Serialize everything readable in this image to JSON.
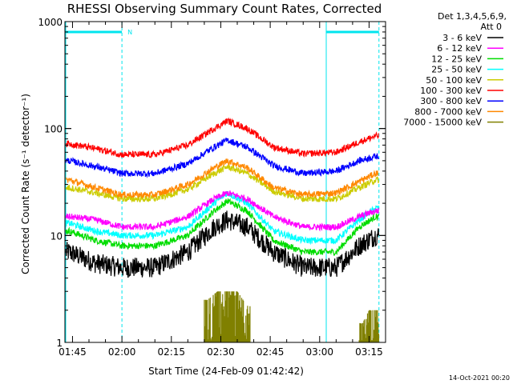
{
  "chart_data": {
    "type": "line",
    "title": "RHESSI Observing Summary Count Rates, Corrected",
    "xlabel": "Start Time (24-Feb-09 01:42:42)",
    "ylabel": "Corrected Count Rate (s⁻¹ detector⁻¹)",
    "yscale": "log",
    "ylim": [
      1,
      1000
    ],
    "ytick_labels": [
      "1",
      "10",
      "100",
      "1000"
    ],
    "xlim": [
      "01:42:42",
      "03:20:00"
    ],
    "xtick_labels": [
      "01:45",
      "02:00",
      "02:15",
      "02:30",
      "02:45",
      "03:00",
      "03:15"
    ],
    "legend_header": [
      "Det 1,3,4,5,6,9,",
      "Att 0"
    ],
    "legend_placement": "right",
    "series": [
      {
        "name": "3 - 6 keV",
        "color": "#000000",
        "x": [
          "01:44",
          "01:52",
          "02:00",
          "02:10",
          "02:20",
          "02:28",
          "02:32",
          "02:38",
          "02:46",
          "02:55",
          "03:05",
          "03:12",
          "03:17"
        ],
        "values": [
          7,
          5.5,
          5,
          5,
          7,
          12,
          14,
          12,
          7,
          5,
          5,
          8,
          10
        ]
      },
      {
        "name": "6 - 12 keV",
        "color": "#ff00ff",
        "x": [
          "01:44",
          "01:52",
          "02:00",
          "02:10",
          "02:20",
          "02:28",
          "02:32",
          "02:38",
          "02:46",
          "02:55",
          "03:05",
          "03:12",
          "03:17"
        ],
        "values": [
          15,
          14,
          12,
          12,
          15,
          22,
          25,
          22,
          15,
          12,
          12,
          15,
          17
        ]
      },
      {
        "name": "12 - 25 keV",
        "color": "#00dd00",
        "x": [
          "01:44",
          "01:52",
          "02:00",
          "02:10",
          "02:20",
          "02:28",
          "02:32",
          "02:38",
          "02:46",
          "02:55",
          "03:05",
          "03:12",
          "03:17"
        ],
        "values": [
          11,
          9,
          8,
          8,
          10,
          17,
          21,
          17,
          9,
          7,
          7,
          12,
          15
        ]
      },
      {
        "name": "25 - 50 keV",
        "color": "#00ffff",
        "x": [
          "01:44",
          "01:52",
          "02:00",
          "02:10",
          "02:20",
          "02:28",
          "02:32",
          "02:38",
          "02:46",
          "02:55",
          "03:05",
          "03:12",
          "03:17"
        ],
        "values": [
          13,
          11,
          10,
          10,
          12,
          20,
          25,
          20,
          11,
          9,
          9,
          14,
          18
        ]
      },
      {
        "name": "50 - 100 keV",
        "color": "#cccc00",
        "x": [
          "01:44",
          "01:52",
          "02:00",
          "02:10",
          "02:20",
          "02:28",
          "02:32",
          "02:38",
          "02:46",
          "02:55",
          "03:05",
          "03:12",
          "03:17"
        ],
        "values": [
          28,
          25,
          22,
          22,
          27,
          38,
          44,
          38,
          26,
          22,
          22,
          28,
          33
        ]
      },
      {
        "name": "100 - 300 keV",
        "color": "#ff0000",
        "x": [
          "01:44",
          "01:52",
          "02:00",
          "02:10",
          "02:20",
          "02:28",
          "02:32",
          "02:38",
          "02:46",
          "02:55",
          "03:05",
          "03:12",
          "03:17"
        ],
        "values": [
          72,
          65,
          57,
          57,
          70,
          100,
          118,
          100,
          67,
          58,
          60,
          75,
          85
        ]
      },
      {
        "name": "300 - 800 keV",
        "color": "#0000ff",
        "x": [
          "01:44",
          "01:52",
          "02:00",
          "02:10",
          "02:20",
          "02:28",
          "02:32",
          "02:38",
          "02:46",
          "02:55",
          "03:05",
          "03:12",
          "03:17"
        ],
        "values": [
          50,
          44,
          38,
          38,
          47,
          67,
          78,
          67,
          45,
          38,
          40,
          50,
          55
        ]
      },
      {
        "name": "800 - 7000 keV",
        "color": "#ff8800",
        "x": [
          "01:44",
          "01:52",
          "02:00",
          "02:10",
          "02:20",
          "02:28",
          "02:32",
          "02:38",
          "02:46",
          "02:55",
          "03:05",
          "03:12",
          "03:17"
        ],
        "values": [
          33,
          28,
          24,
          24,
          30,
          43,
          50,
          43,
          28,
          24,
          25,
          32,
          38
        ]
      },
      {
        "name": "7000 - 15000 keV",
        "color": "#808000",
        "x": [
          "02:26",
          "02:29",
          "02:32",
          "02:35",
          "02:38",
          "03:13",
          "03:15",
          "03:17"
        ],
        "values": [
          2.5,
          3,
          3,
          3,
          2.2,
          1.5,
          2,
          2
        ]
      }
    ],
    "annotations": [
      {
        "text": "N",
        "at": "02:00",
        "y": 800
      }
    ],
    "attenuator_shading_x": [
      [
        "01:42:42",
        "02:00"
      ],
      [
        "03:02",
        "03:18"
      ]
    ],
    "attenuator_shading_y": 800
  },
  "footer": {
    "timestamp": "14-Oct-2021 00:20"
  }
}
